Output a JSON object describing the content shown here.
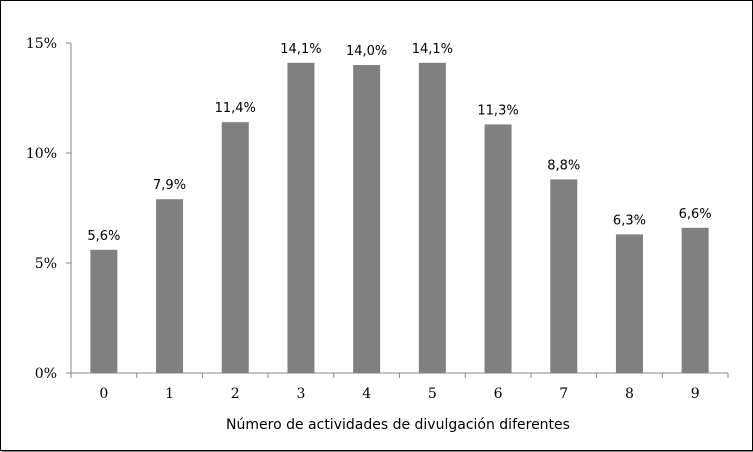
{
  "chart_data": {
    "type": "bar",
    "categories": [
      "0",
      "1",
      "2",
      "3",
      "4",
      "5",
      "6",
      "7",
      "8",
      "9"
    ],
    "values": [
      5.6,
      7.9,
      11.4,
      14.1,
      14.0,
      14.1,
      11.3,
      8.8,
      6.3,
      6.6
    ],
    "data_labels": [
      "5,6%",
      "7,9%",
      "11,4%",
      "14,1%",
      "14,0%",
      "14,1%",
      "11,3%",
      "8,8%",
      "6,3%",
      "6,6%"
    ],
    "y_ticks": [
      0,
      5,
      10,
      15
    ],
    "y_tick_labels": [
      "0%",
      "5%",
      "10%",
      "15%"
    ],
    "ylim": [
      0,
      15
    ],
    "xlabel": "Número de actividades de divulgación diferentes",
    "ylabel": "",
    "title": "",
    "grid": false,
    "legend": "none",
    "bar_color": "#808080"
  }
}
